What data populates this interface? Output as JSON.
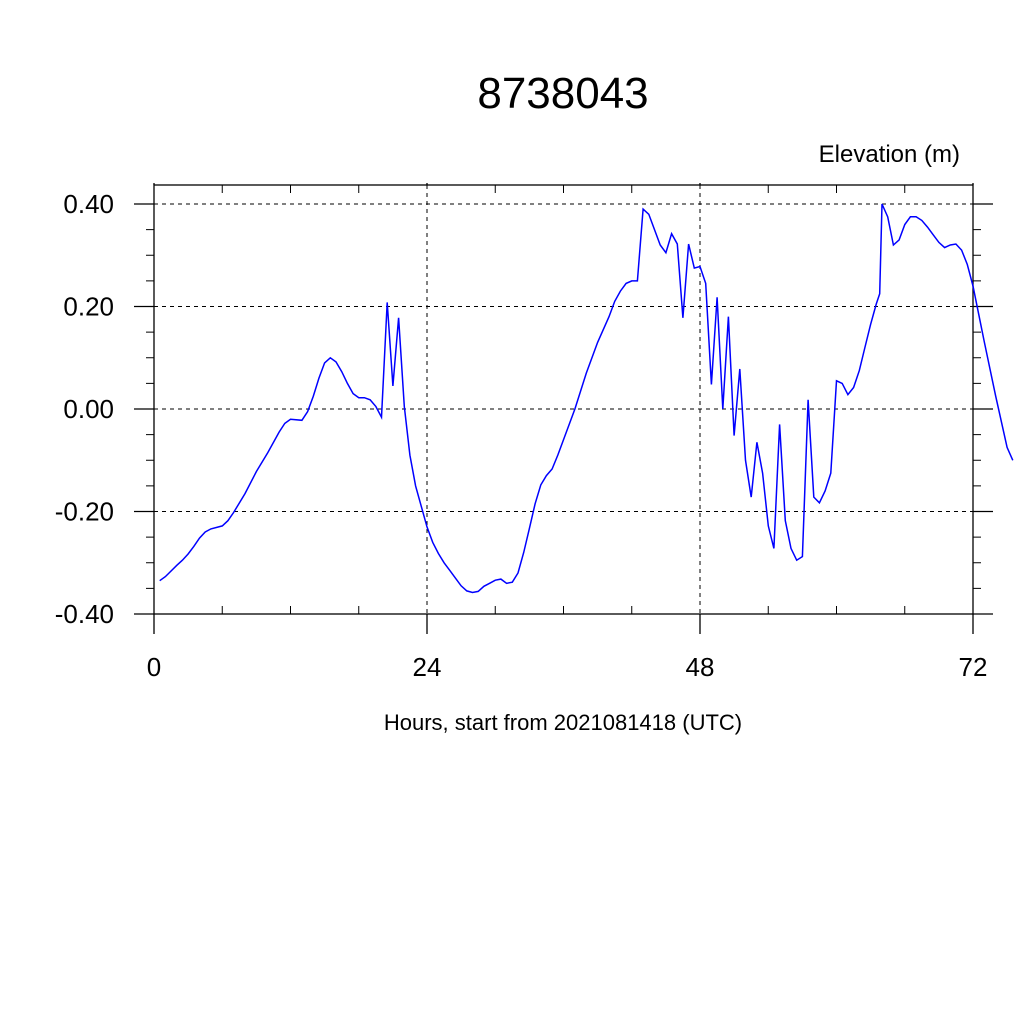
{
  "chart_data": {
    "type": "line",
    "title": "8738043",
    "ylabel": "Elevation (m)",
    "xlabel": "Hours, start from 2021081418 (UTC)",
    "xlim": [
      0,
      72
    ],
    "ylim": [
      -0.4,
      0.4
    ],
    "x_ticks": [
      0,
      24,
      48,
      72
    ],
    "x_tick_labels": [
      "0",
      "24",
      "48",
      "72"
    ],
    "y_ticks": [
      -0.4,
      -0.2,
      0.0,
      0.2,
      0.4
    ],
    "y_tick_labels": [
      "-0.40",
      "-0.20",
      "0.00",
      "0.20",
      "0.40"
    ],
    "grid": true,
    "line_color": "#0000ff",
    "series": [
      {
        "points": [
          [
            0.5,
            -0.335
          ],
          [
            1.0,
            -0.327
          ],
          [
            2.0,
            -0.305
          ],
          [
            2.5,
            -0.295
          ],
          [
            3.0,
            -0.283
          ],
          [
            3.5,
            -0.268
          ],
          [
            4.0,
            -0.252
          ],
          [
            4.5,
            -0.24
          ],
          [
            5.0,
            -0.234
          ],
          [
            6.0,
            -0.228
          ],
          [
            6.5,
            -0.218
          ],
          [
            7.0,
            -0.202
          ],
          [
            8.0,
            -0.165
          ],
          [
            9.0,
            -0.122
          ],
          [
            10.0,
            -0.085
          ],
          [
            11.0,
            -0.045
          ],
          [
            11.5,
            -0.028
          ],
          [
            12.0,
            -0.02
          ],
          [
            13.0,
            -0.022
          ],
          [
            13.5,
            -0.005
          ],
          [
            14.0,
            0.025
          ],
          [
            14.5,
            0.06
          ],
          [
            15.0,
            0.09
          ],
          [
            15.5,
            0.1
          ],
          [
            16.0,
            0.092
          ],
          [
            16.5,
            0.073
          ],
          [
            17.0,
            0.05
          ],
          [
            17.5,
            0.03
          ],
          [
            18.0,
            0.022
          ],
          [
            18.5,
            0.022
          ],
          [
            19.0,
            0.018
          ],
          [
            19.5,
            0.005
          ],
          [
            20.0,
            -0.016
          ],
          [
            20.5,
            0.208
          ],
          [
            21.0,
            0.045
          ],
          [
            21.5,
            0.178
          ],
          [
            22.0,
            0.005
          ],
          [
            22.5,
            -0.09
          ],
          [
            23.0,
            -0.15
          ],
          [
            23.5,
            -0.19
          ],
          [
            24.0,
            -0.23
          ],
          [
            24.5,
            -0.26
          ],
          [
            25.0,
            -0.282
          ],
          [
            25.5,
            -0.3
          ],
          [
            26.0,
            -0.315
          ],
          [
            26.5,
            -0.33
          ],
          [
            27.0,
            -0.345
          ],
          [
            27.5,
            -0.355
          ],
          [
            28.0,
            -0.358
          ],
          [
            28.5,
            -0.356
          ],
          [
            29.0,
            -0.346
          ],
          [
            29.5,
            -0.34
          ],
          [
            30.0,
            -0.334
          ],
          [
            30.5,
            -0.332
          ],
          [
            31.0,
            -0.34
          ],
          [
            31.5,
            -0.338
          ],
          [
            32.0,
            -0.32
          ],
          [
            32.5,
            -0.28
          ],
          [
            33.0,
            -0.233
          ],
          [
            33.5,
            -0.185
          ],
          [
            34.0,
            -0.148
          ],
          [
            34.5,
            -0.13
          ],
          [
            35.0,
            -0.117
          ],
          [
            35.5,
            -0.09
          ],
          [
            36.0,
            -0.06
          ],
          [
            37.0,
            0.0
          ],
          [
            38.0,
            0.07
          ],
          [
            39.0,
            0.13
          ],
          [
            40.0,
            0.18
          ],
          [
            40.5,
            0.21
          ],
          [
            41.0,
            0.23
          ],
          [
            41.5,
            0.245
          ],
          [
            42.0,
            0.25
          ],
          [
            42.5,
            0.25
          ],
          [
            43.0,
            0.39
          ],
          [
            43.5,
            0.38
          ],
          [
            44.0,
            0.35
          ],
          [
            44.5,
            0.32
          ],
          [
            45.0,
            0.305
          ],
          [
            45.5,
            0.342
          ],
          [
            46.0,
            0.322
          ],
          [
            46.5,
            0.178
          ],
          [
            47.0,
            0.322
          ],
          [
            47.5,
            0.275
          ],
          [
            48.0,
            0.278
          ],
          [
            48.5,
            0.245
          ],
          [
            49.0,
            0.048
          ],
          [
            49.5,
            0.218
          ],
          [
            50.0,
            0.0
          ],
          [
            50.5,
            0.18
          ],
          [
            51.0,
            -0.052
          ],
          [
            51.5,
            0.078
          ],
          [
            52.0,
            -0.1
          ],
          [
            52.5,
            -0.172
          ],
          [
            53.0,
            -0.065
          ],
          [
            53.5,
            -0.125
          ],
          [
            54.0,
            -0.228
          ],
          [
            54.5,
            -0.272
          ],
          [
            55.0,
            -0.03
          ],
          [
            55.5,
            -0.218
          ],
          [
            56.0,
            -0.272
          ],
          [
            56.5,
            -0.295
          ],
          [
            57.0,
            -0.288
          ],
          [
            57.5,
            0.018
          ],
          [
            58.0,
            -0.172
          ],
          [
            58.5,
            -0.183
          ],
          [
            59.0,
            -0.16
          ],
          [
            59.5,
            -0.125
          ],
          [
            60.0,
            0.055
          ],
          [
            60.5,
            0.05
          ],
          [
            61.0,
            0.028
          ],
          [
            61.5,
            0.042
          ],
          [
            62.0,
            0.075
          ],
          [
            62.5,
            0.12
          ],
          [
            63.0,
            0.165
          ],
          [
            63.5,
            0.205
          ],
          [
            63.8,
            0.225
          ],
          [
            64.0,
            0.4
          ],
          [
            64.5,
            0.375
          ],
          [
            65.0,
            0.32
          ],
          [
            65.5,
            0.33
          ],
          [
            66.0,
            0.36
          ],
          [
            66.5,
            0.375
          ],
          [
            67.0,
            0.375
          ],
          [
            67.5,
            0.368
          ],
          [
            68.0,
            0.355
          ],
          [
            68.5,
            0.34
          ],
          [
            69.0,
            0.325
          ],
          [
            69.5,
            0.315
          ],
          [
            70.0,
            0.32
          ],
          [
            70.5,
            0.322
          ],
          [
            71.0,
            0.31
          ],
          [
            71.5,
            0.282
          ],
          [
            72.0,
            0.24
          ],
          [
            72.5,
            0.185
          ],
          [
            73.0,
            0.13
          ],
          [
            74.0,
            0.025
          ],
          [
            75.0,
            -0.075
          ],
          [
            75.5,
            -0.1
          ]
        ]
      }
    ]
  }
}
